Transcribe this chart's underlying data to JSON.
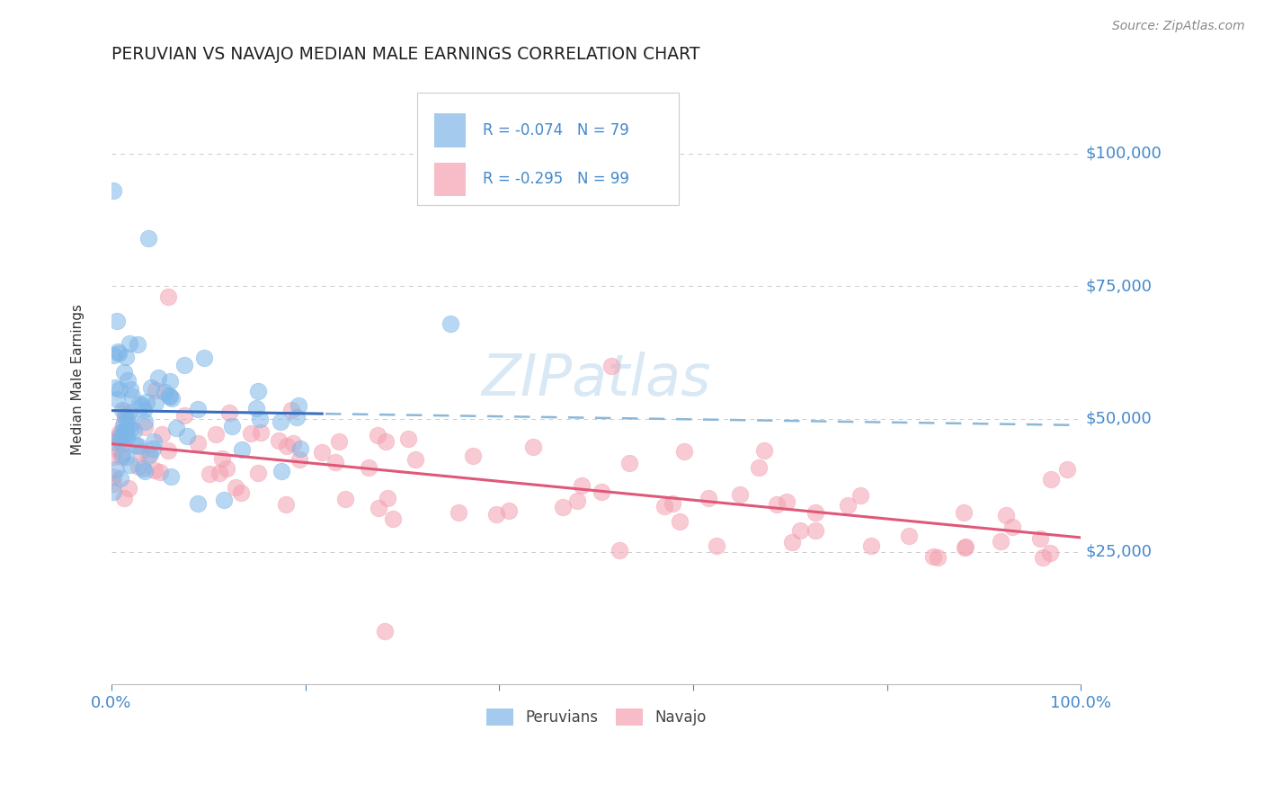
{
  "title": "PERUVIAN VS NAVAJO MEDIAN MALE EARNINGS CORRELATION CHART",
  "source": "Source: ZipAtlas.com",
  "ylabel": "Median Male Earnings",
  "yticks": [
    25000,
    50000,
    75000,
    100000
  ],
  "ytick_labels": [
    "$25,000",
    "$50,000",
    "$75,000",
    "$100,000"
  ],
  "ylim": [
    0,
    115000
  ],
  "xlim": [
    0.0,
    1.0
  ],
  "legend_blue_r": "R = -0.074",
  "legend_blue_n": "N = 79",
  "legend_pink_r": "R = -0.295",
  "legend_pink_n": "N = 99",
  "peruvian_color": "#7EB6E8",
  "navajo_color": "#F4A0B0",
  "trend_blue_solid_color": "#3A6FBF",
  "trend_blue_dashed_color": "#8BB8D8",
  "trend_pink_color": "#E05878",
  "label_color": "#4488CC",
  "background_color": "#FFFFFF",
  "grid_color": "#CCCCCC",
  "tick_color": "#4488CC",
  "watermark_color": "#D8E8F4"
}
